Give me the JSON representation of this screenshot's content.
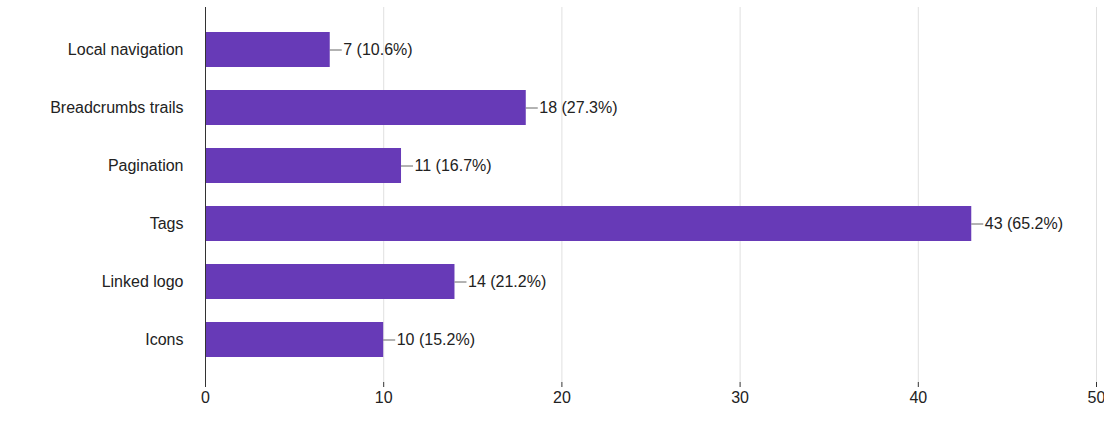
{
  "chart_data": {
    "type": "bar",
    "orientation": "horizontal",
    "categories": [
      "Local navigation",
      "Breadcrumbs trails",
      "Pagination",
      "Tags",
      "Linked logo",
      "Icons"
    ],
    "values": [
      7,
      18,
      11,
      43,
      14,
      10
    ],
    "value_labels": [
      "7 (10.6%)",
      "18 (27.3%)",
      "11 (16.7%)",
      "43 (65.2%)",
      "14 (21.2%)",
      "10 (15.2%)"
    ],
    "data_labels": true,
    "color": "#673ab7",
    "xlim": [
      0,
      50
    ],
    "xticks": [
      0,
      10,
      20,
      30,
      40,
      50
    ],
    "grid": true
  }
}
